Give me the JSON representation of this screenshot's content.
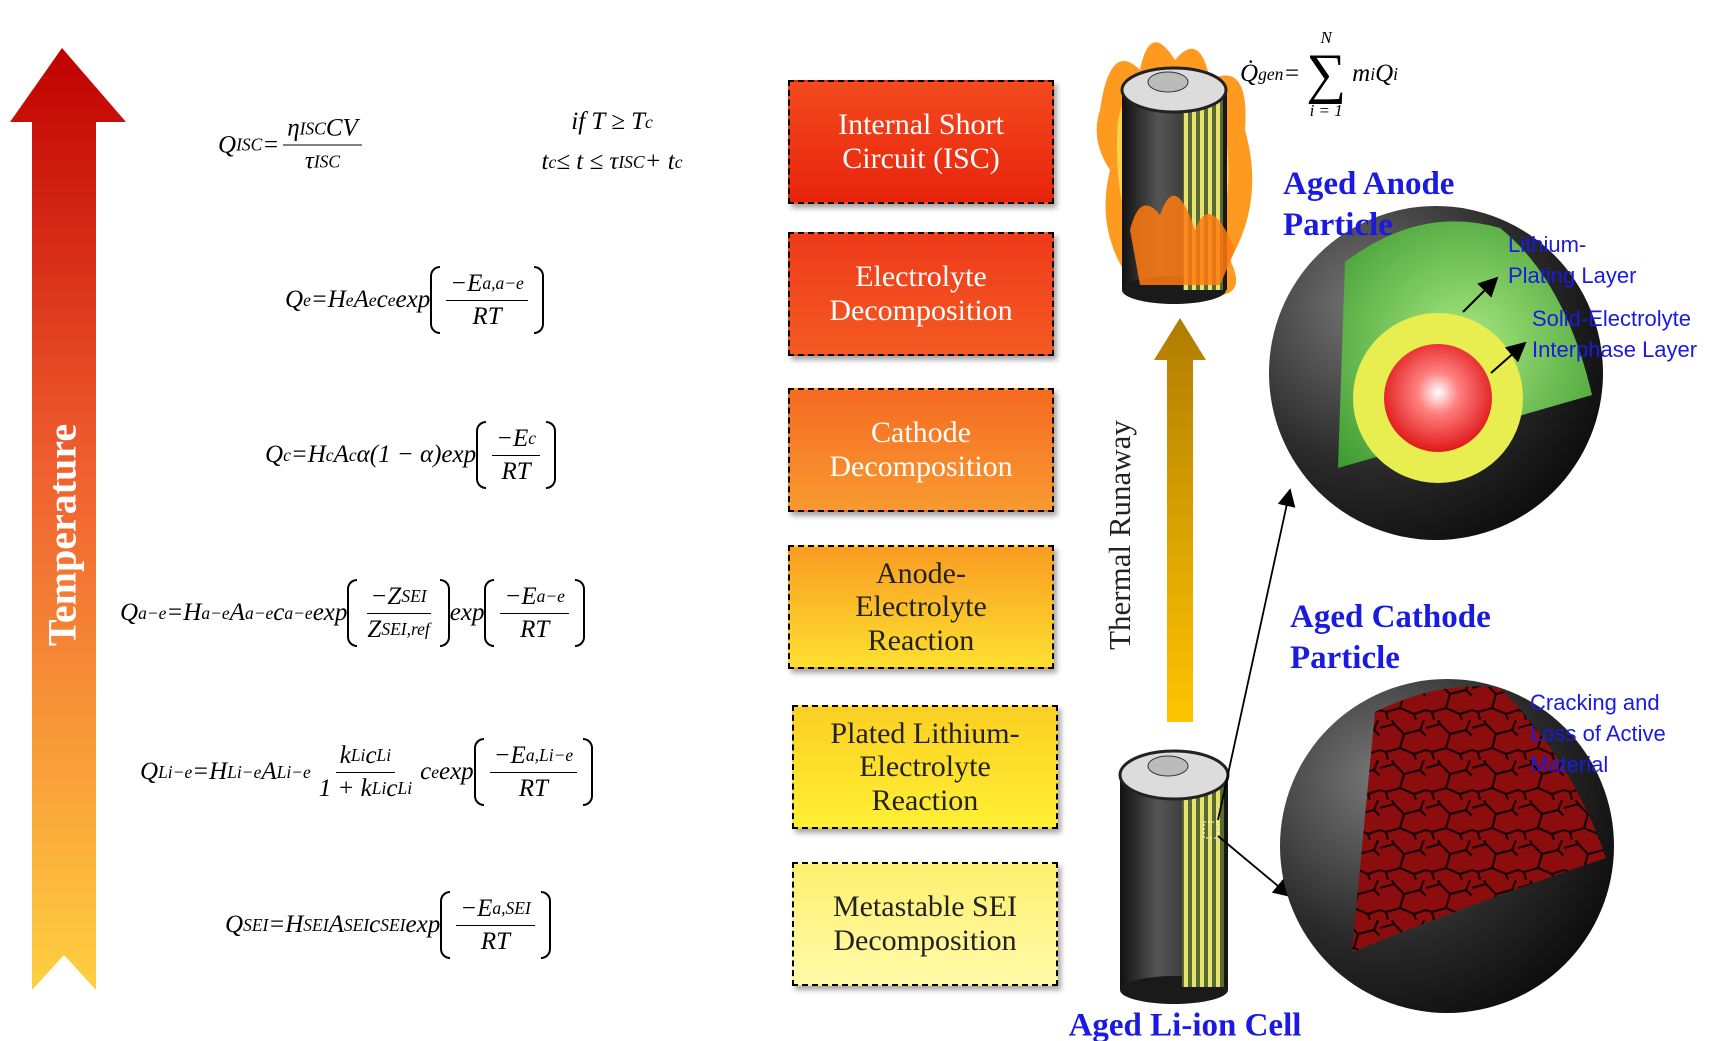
{
  "temperature_label": "Temperature",
  "equations": [
    {
      "parts": [
        {
          "t": "Q",
          "s": "ISC"
        },
        {
          "t": " = "
        },
        {
          "num": [
            {
              "t": "η",
              "s": "ISC"
            },
            {
              "t": "CV"
            }
          ],
          "den": [
            {
              "t": "τ",
              "s": "ISC"
            }
          ]
        }
      ],
      "condition": [
        [
          {
            "t": "if T ≥ T",
            "s": "c"
          }
        ],
        [
          {
            "t": "t",
            "s": "c"
          },
          {
            "t": " ≤ t ≤ τ",
            "s": "ISC"
          },
          {
            "t": " + t",
            "s": "c"
          }
        ]
      ]
    },
    {
      "parts": [
        {
          "t": "Q",
          "s": "e"
        },
        {
          "t": " = "
        },
        {
          "t": "H",
          "s": "e"
        },
        {
          "t": "A",
          "s": "e"
        },
        {
          "t": "c",
          "s": "e"
        },
        {
          "t": "exp"
        },
        {
          "paren": [
            {
              "num": [
                {
                  "t": "−E",
                  "s": "a,a−e"
                }
              ],
              "den": [
                {
                  "t": "RT"
                }
              ]
            }
          ]
        }
      ]
    },
    {
      "parts": [
        {
          "t": "Q",
          "s": "c"
        },
        {
          "t": " = "
        },
        {
          "t": "H",
          "s": "c"
        },
        {
          "t": "A",
          "s": "c"
        },
        {
          "t": "α(1 − α)exp"
        },
        {
          "paren": [
            {
              "num": [
                {
                  "t": "−E",
                  "s": "c"
                }
              ],
              "den": [
                {
                  "t": "RT"
                }
              ]
            }
          ]
        }
      ]
    },
    {
      "parts": [
        {
          "t": "Q",
          "s": "a−e"
        },
        {
          "t": " = "
        },
        {
          "t": "H",
          "s": "a−e"
        },
        {
          "t": "A",
          "s": "a−e"
        },
        {
          "t": "c",
          "s": "a−e"
        },
        {
          "t": "exp"
        },
        {
          "paren": [
            {
              "num": [
                {
                  "t": "−Z",
                  "s": "SEI"
                }
              ],
              "den": [
                {
                  "t": "Z",
                  "s": "SEI,ref"
                }
              ]
            }
          ]
        },
        {
          "t": "exp"
        },
        {
          "paren": [
            {
              "num": [
                {
                  "t": "−E",
                  "s": "a−e"
                }
              ],
              "den": [
                {
                  "t": "RT"
                }
              ]
            }
          ]
        }
      ]
    },
    {
      "parts": [
        {
          "t": "Q",
          "s": "Li−e"
        },
        {
          "t": " = "
        },
        {
          "t": "H",
          "s": "Li−e"
        },
        {
          "t": "A",
          "s": "Li−e"
        },
        {
          "num": [
            {
              "t": "k",
              "s": "Li"
            },
            {
              "t": "c",
              "s": "Li"
            }
          ],
          "den": [
            {
              "t": "1 + k",
              "s": "Li"
            },
            {
              "t": "c",
              "s": "Li"
            }
          ]
        },
        {
          "t": "c",
          "s": "e"
        },
        {
          "t": "exp"
        },
        {
          "paren": [
            {
              "num": [
                {
                  "t": "−E",
                  "s": "a,Li−e"
                }
              ],
              "den": [
                {
                  "t": "RT"
                }
              ]
            }
          ]
        }
      ]
    },
    {
      "parts": [
        {
          "t": "Q",
          "s": "SEI"
        },
        {
          "t": " = "
        },
        {
          "t": "H",
          "s": "SEI"
        },
        {
          "t": "A",
          "s": "SEI"
        },
        {
          "t": "c",
          "s": "SEI"
        },
        {
          "t": "exp"
        },
        {
          "paren": [
            {
              "num": [
                {
                  "t": "−E",
                  "s": "a,SEI"
                }
              ],
              "den": [
                {
                  "t": "RT"
                }
              ]
            }
          ]
        }
      ]
    }
  ],
  "reactions": [
    [
      "Internal Short",
      "Circuit (ISC)"
    ],
    [
      "Electrolyte",
      "Decomposition"
    ],
    [
      "Cathode",
      "Decomposition"
    ],
    [
      "Anode-",
      "Electrolyte",
      "Reaction"
    ],
    [
      "Plated Lithium-",
      "Electrolyte",
      "Reaction"
    ],
    [
      "Metastable SEI",
      "Decomposition"
    ]
  ],
  "thermal_runaway": "Thermal Runaway",
  "heat_generation": [
    {
      "t": "Q̇",
      "s": "gen"
    },
    {
      "t": " = "
    },
    {
      "sum": "∑",
      "over": "N",
      "under": "i = 1"
    },
    {
      "t": "m",
      "s": "i"
    },
    {
      "t": "Q",
      "s": "i"
    }
  ],
  "anode": {
    "title": [
      "Aged Anode",
      "Particle"
    ],
    "layers": [
      [
        "Lithium-",
        "Plating Layer"
      ],
      [
        "Solid-Electrolyte",
        "Interphase Layer"
      ]
    ]
  },
  "cathode": {
    "title": [
      "Aged Cathode",
      "Particle"
    ],
    "annotation": [
      "Cracking and",
      "Loss of Active",
      "Material"
    ]
  },
  "cell_label": "Aged Li-ion Cell"
}
